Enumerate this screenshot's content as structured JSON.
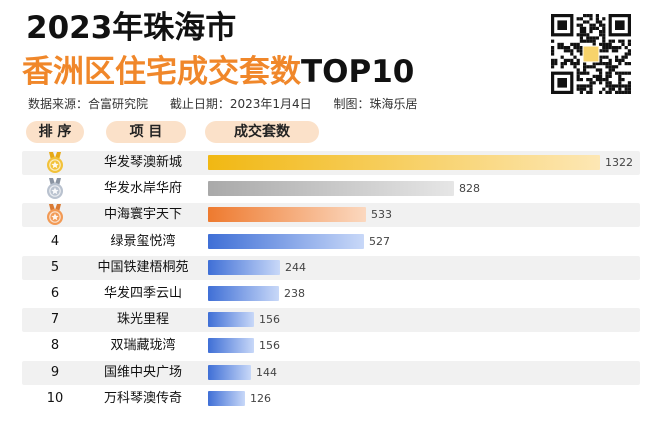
{
  "title": {
    "line1": "2023年珠海市",
    "line2_orange": "香洲区住宅成交套数",
    "line2_black": "TOP10"
  },
  "meta": {
    "source": "数据来源：合富研究院",
    "date": "截止日期：2023年1月4日",
    "maker": "制图：珠海乐居"
  },
  "headers": {
    "rank": "排 序",
    "project": "项 目",
    "count": "成交套数"
  },
  "icons": {
    "qr": "qr-code-icon",
    "gold": "gold-medal-icon",
    "silver": "silver-medal-icon",
    "bronze": "bronze-medal-icon"
  },
  "colors": {
    "title_orange": "#f0872a",
    "header_pill": "#fbe1c9",
    "gold": "#f1b813",
    "silver": "#a9a9a9",
    "bronze": "#ee7a2f",
    "blue": "#3f6fd6",
    "row_shade": "#f1f1f1"
  },
  "chart_data": {
    "type": "bar",
    "orientation": "horizontal",
    "title": "2023年珠海市香洲区住宅成交套数TOP10",
    "xlabel": "成交套数",
    "ylabel": "项目",
    "xlim": [
      0,
      1322
    ],
    "rows": [
      {
        "rank": "1",
        "project": "华发琴澳新城",
        "value": 1322,
        "medal": "gold"
      },
      {
        "rank": "2",
        "project": "华发水岸华府",
        "value": 828,
        "medal": "silver"
      },
      {
        "rank": "3",
        "project": "中海寰宇天下",
        "value": 533,
        "medal": "bronze"
      },
      {
        "rank": "4",
        "project": "绿景玺悦湾",
        "value": 527
      },
      {
        "rank": "5",
        "project": "中国铁建梧桐苑",
        "value": 244
      },
      {
        "rank": "6",
        "project": "华发四季云山",
        "value": 238
      },
      {
        "rank": "7",
        "project": "珠光里程",
        "value": 156
      },
      {
        "rank": "8",
        "project": "双瑞藏珑湾",
        "value": 156
      },
      {
        "rank": "9",
        "project": "国维中央广场",
        "value": 144
      },
      {
        "rank": "10",
        "project": "万科琴澳传奇",
        "value": 126
      }
    ]
  }
}
